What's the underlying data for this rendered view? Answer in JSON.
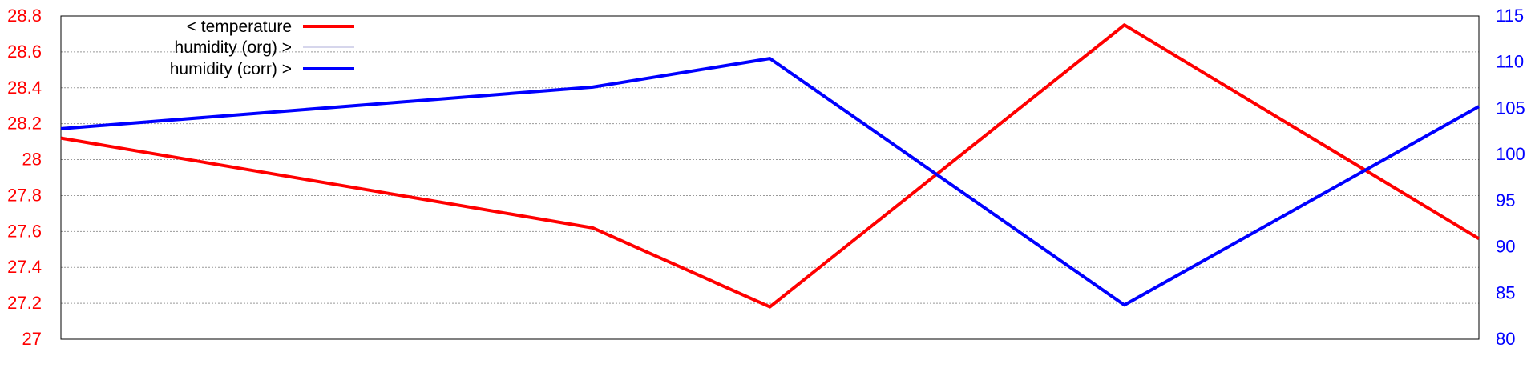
{
  "colors": {
    "temperature": "#ff0000",
    "humidity_org": "#c8c8e6",
    "humidity_corr": "#0000ff",
    "grid": "#999999",
    "frame": "#000000"
  },
  "chart_data": {
    "type": "line",
    "grid": true,
    "legend_position": "top-left",
    "x": [
      0,
      1,
      2,
      3,
      4
    ],
    "x_tick_labels": [],
    "y_left": {
      "range": [
        27,
        28.8
      ],
      "ticks": [
        27,
        27.2,
        27.4,
        27.6,
        27.8,
        28,
        28.2,
        28.4,
        28.6,
        28.8
      ],
      "tick_labels": [
        "27",
        "27.2",
        "27.4",
        "27.6",
        "27.8",
        "28",
        "28.2",
        "28.4",
        "28.6",
        "28.8"
      ]
    },
    "y_right": {
      "range": [
        80,
        115
      ],
      "ticks": [
        80,
        85,
        90,
        95,
        100,
        105,
        110,
        115
      ],
      "tick_labels": [
        "80",
        "85",
        "90",
        "95",
        "100",
        "105",
        "110",
        "115"
      ]
    },
    "series": [
      {
        "name": "< temperature",
        "axis": "left",
        "x": [
          0,
          0.375,
          0.5,
          0.75,
          1.0
        ],
        "values": [
          28.12,
          27.62,
          27.18,
          28.75,
          27.56
        ],
        "color": "#ff0000"
      },
      {
        "name": "humidity (org) >",
        "axis": "right",
        "x": [],
        "values": [],
        "color": "#c8c8e6"
      },
      {
        "name": "humidity (corr) >",
        "axis": "right",
        "x": [
          0,
          0.375,
          0.5,
          0.75,
          1.0
        ],
        "values": [
          102.8,
          107.3,
          110.4,
          83.7,
          105.2
        ],
        "color": "#0000ff"
      }
    ]
  }
}
